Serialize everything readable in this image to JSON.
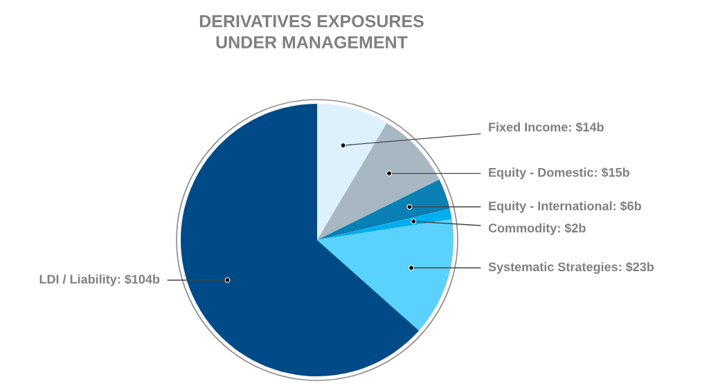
{
  "chart_data": {
    "type": "pie",
    "title": "DERIVATIVES EXPOSURES\nUNDER MANAGEMENT",
    "categories": [
      "Fixed Income",
      "Equity - Domestic",
      "Equity - International",
      "Commodity",
      "Systematic Strategies",
      "LDI / Liability"
    ],
    "values": [
      14,
      15,
      6,
      2,
      23,
      104
    ],
    "value_labels": [
      "$14b",
      "$15b",
      "$6b",
      "$2b",
      "$23b",
      "$104b"
    ],
    "colors": [
      "#ddf1fc",
      "#a8b8c3",
      "#0a7fb4",
      "#00aeef",
      "#5bd1fd",
      "#004b87"
    ]
  }
}
